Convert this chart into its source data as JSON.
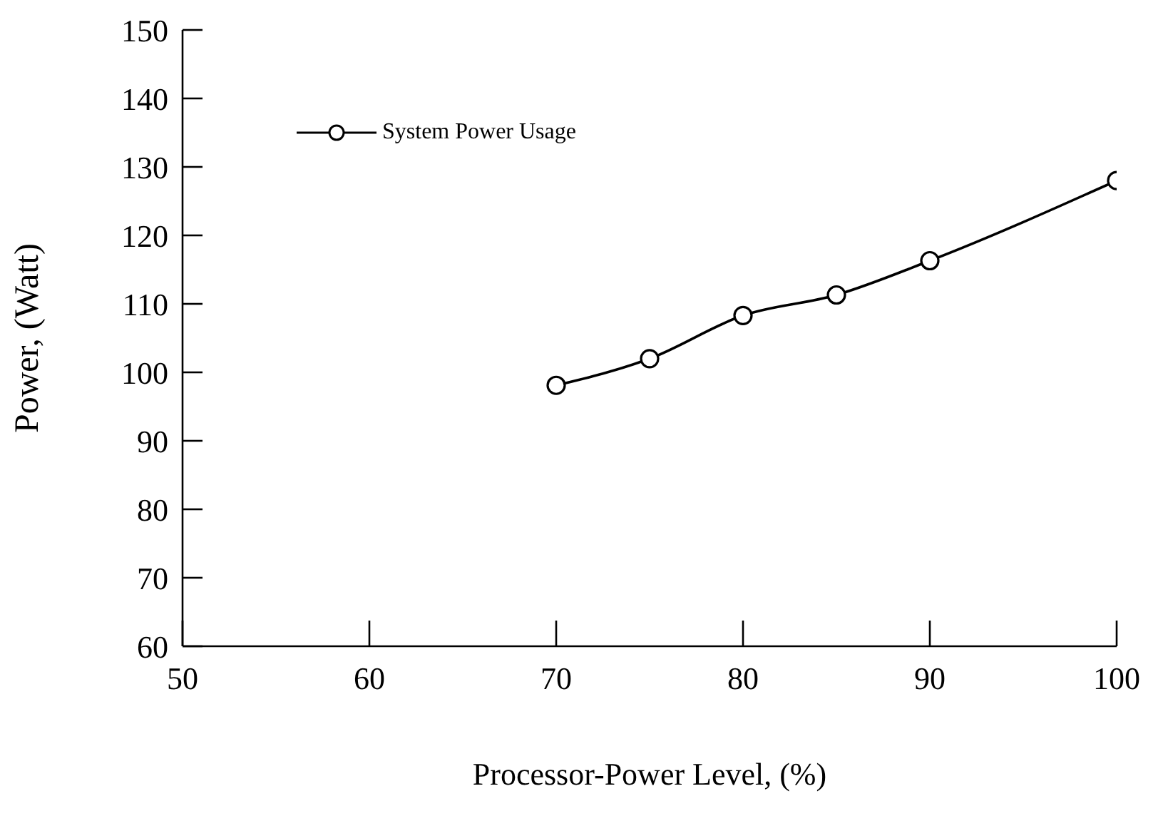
{
  "chart_data": {
    "type": "line",
    "xlabel": "Processor-Power Level, (%)",
    "ylabel": "Power, (Watt)",
    "x": [
      70,
      75,
      80,
      85,
      90,
      100
    ],
    "series": [
      {
        "name": "System Power Usage",
        "color": "#000000",
        "values": [
          98.1,
          102.0,
          108.3,
          111.3,
          116.3,
          128.0
        ]
      }
    ],
    "xlim": [
      50,
      100
    ],
    "xticks": [
      50,
      60,
      70,
      80,
      90,
      100
    ],
    "ylim": [
      60,
      150
    ],
    "yticks": [
      60,
      70,
      80,
      90,
      100,
      110,
      120,
      130,
      140,
      150
    ],
    "grid": false,
    "legend": "top left",
    "marker": "circle",
    "line_style": "solid"
  }
}
